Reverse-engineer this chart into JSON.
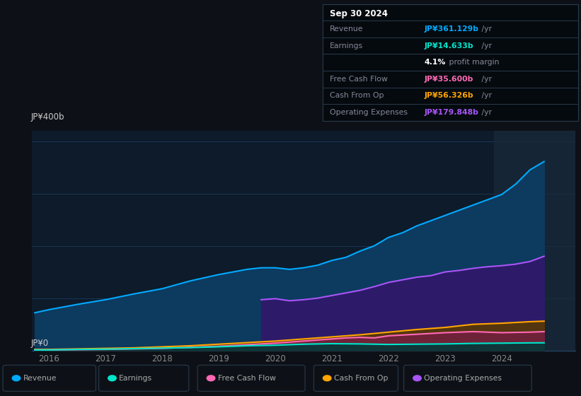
{
  "bg_color": "#0d1117",
  "chart_bg": "#0d1b2a",
  "title_box": {
    "title": "Sep 30 2024",
    "rows": [
      {
        "label": "Revenue",
        "value": "JP¥361.129b",
        "unit": " /yr",
        "value_color": "#00aaff"
      },
      {
        "label": "Earnings",
        "value": "JP¥14.633b",
        "unit": " /yr",
        "value_color": "#00e5cc"
      },
      {
        "label": "",
        "value": "4.1%",
        "unit": " profit margin",
        "value_color": "#ffffff"
      },
      {
        "label": "Free Cash Flow",
        "value": "JP¥35.600b",
        "unit": " /yr",
        "value_color": "#ff69b4"
      },
      {
        "label": "Cash From Op",
        "value": "JP¥56.326b",
        "unit": " /yr",
        "value_color": "#ffa500"
      },
      {
        "label": "Operating Expenses",
        "value": "JP¥179.848b",
        "unit": " /yr",
        "value_color": "#a855f7"
      }
    ]
  },
  "y_label_top": "JP¥400b",
  "y_label_bot": "JP¥0",
  "ylim": [
    0,
    420
  ],
  "xlim": [
    2015.7,
    2025.3
  ],
  "xticks": [
    2016,
    2017,
    2018,
    2019,
    2020,
    2021,
    2022,
    2023,
    2024
  ],
  "grid_color": "#1e3a5f",
  "series": {
    "revenue": {
      "color": "#00aaff",
      "fill": "#0d3a5f",
      "years": [
        2015.75,
        2016.0,
        2016.5,
        2017.0,
        2017.5,
        2018.0,
        2018.5,
        2019.0,
        2019.5,
        2019.75,
        2020.0,
        2020.25,
        2020.5,
        2020.75,
        2021.0,
        2021.25,
        2021.5,
        2021.75,
        2022.0,
        2022.25,
        2022.5,
        2022.75,
        2023.0,
        2023.25,
        2023.5,
        2023.75,
        2024.0,
        2024.25,
        2024.5,
        2024.75
      ],
      "values": [
        72,
        78,
        88,
        97,
        108,
        118,
        133,
        145,
        155,
        158,
        158,
        155,
        158,
        163,
        172,
        178,
        190,
        200,
        216,
        225,
        238,
        248,
        258,
        268,
        278,
        288,
        298,
        318,
        345,
        361
      ]
    },
    "operating_expenses": {
      "color": "#a855f7",
      "fill": "#2d1b69",
      "years": [
        2019.75,
        2020.0,
        2020.25,
        2020.5,
        2020.75,
        2021.0,
        2021.25,
        2021.5,
        2021.75,
        2022.0,
        2022.25,
        2022.5,
        2022.75,
        2023.0,
        2023.25,
        2023.5,
        2023.75,
        2024.0,
        2024.25,
        2024.5,
        2024.75
      ],
      "values": [
        97,
        99,
        95,
        97,
        100,
        105,
        110,
        115,
        122,
        130,
        135,
        140,
        143,
        150,
        153,
        157,
        160,
        162,
        165,
        170,
        180
      ]
    },
    "cash_from_op": {
      "color": "#ffa500",
      "years": [
        2015.75,
        2016.0,
        2016.5,
        2017.0,
        2017.5,
        2018.0,
        2018.5,
        2019.0,
        2019.5,
        2020.0,
        2020.5,
        2021.0,
        2021.5,
        2022.0,
        2022.5,
        2023.0,
        2023.5,
        2024.0,
        2024.5,
        2024.75
      ],
      "values": [
        2,
        2,
        3,
        4,
        5,
        7,
        9,
        12,
        15,
        18,
        22,
        26,
        30,
        35,
        40,
        44,
        50,
        52,
        55,
        56
      ]
    },
    "free_cash_flow": {
      "color": "#ff69b4",
      "years": [
        2015.75,
        2016.0,
        2016.5,
        2017.0,
        2017.5,
        2018.0,
        2018.5,
        2019.0,
        2019.5,
        2020.0,
        2020.5,
        2021.0,
        2021.25,
        2021.5,
        2021.75,
        2022.0,
        2022.5,
        2023.0,
        2023.5,
        2024.0,
        2024.5,
        2024.75
      ],
      "values": [
        1,
        1,
        1.5,
        2,
        3,
        4,
        6,
        8,
        11,
        14,
        18,
        22,
        24,
        25,
        24,
        28,
        31,
        34,
        36,
        34,
        35,
        36
      ]
    },
    "earnings": {
      "color": "#00e5cc",
      "years": [
        2015.75,
        2016.0,
        2016.5,
        2017.0,
        2017.5,
        2018.0,
        2018.5,
        2019.0,
        2019.5,
        2020.0,
        2020.5,
        2021.0,
        2021.5,
        2022.0,
        2022.5,
        2023.0,
        2023.5,
        2024.0,
        2024.5,
        2024.75
      ],
      "values": [
        1,
        1,
        2,
        2.5,
        3.5,
        4.5,
        5.5,
        7,
        9,
        10,
        12,
        13,
        12.5,
        11.5,
        12,
        12.5,
        13.5,
        14,
        14.5,
        14.6
      ]
    }
  },
  "highlight_start": 2023.87,
  "legend": [
    {
      "label": "Revenue",
      "color": "#00aaff"
    },
    {
      "label": "Earnings",
      "color": "#00e5cc"
    },
    {
      "label": "Free Cash Flow",
      "color": "#ff69b4"
    },
    {
      "label": "Cash From Op",
      "color": "#ffa500"
    },
    {
      "label": "Operating Expenses",
      "color": "#a855f7"
    }
  ]
}
